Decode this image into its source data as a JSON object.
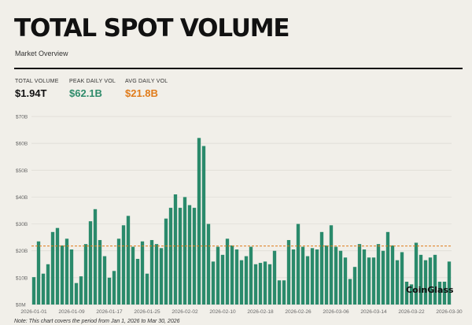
{
  "header": {
    "title": "TOTAL SPOT VOLUME",
    "subtitle": "Market Overview"
  },
  "stats": [
    {
      "label": "TOTAL VOLUME",
      "value": "$1.94T",
      "color": "#111111"
    },
    {
      "label": "PEAK DAILY VOL",
      "value": "$62.1B",
      "color": "#2e8b6a"
    },
    {
      "label": "AVG DAILY VOL",
      "value": "$21.8B",
      "color": "#e07b1a"
    }
  ],
  "brand": "CoinGlass",
  "note": "Note: This chart covers the period from Jan 1, 2026 to Mar 30, 2026",
  "colors": {
    "bar": "#2a8a6b",
    "avg_line": "#e07b1a",
    "grid": "#dcdad3"
  },
  "chart_data": {
    "type": "bar",
    "title": "TOTAL SPOT VOLUME",
    "xlabel": "",
    "ylabel": "",
    "ylim": [
      0,
      70
    ],
    "yticks": [
      0,
      10,
      20,
      30,
      40,
      50,
      60,
      70
    ],
    "ytick_labels": [
      "$0M",
      "$10B",
      "$20B",
      "$30B",
      "$40B",
      "$50B",
      "$60B",
      "$70B"
    ],
    "xtick_labels": [
      "2026-01-01",
      "2026-01-09",
      "2026-01-17",
      "2026-01-25",
      "2026-02-02",
      "2026-02-10",
      "2026-02-18",
      "2026-02-26",
      "2026-03-06",
      "2026-03-14",
      "2026-03-22",
      "2026-03-30"
    ],
    "grid": true,
    "avg_line": 21.8,
    "categories": [
      "2026-01-01",
      "2026-01-02",
      "2026-01-03",
      "2026-01-04",
      "2026-01-05",
      "2026-01-06",
      "2026-01-07",
      "2026-01-08",
      "2026-01-09",
      "2026-01-10",
      "2026-01-11",
      "2026-01-12",
      "2026-01-13",
      "2026-01-14",
      "2026-01-15",
      "2026-01-16",
      "2026-01-17",
      "2026-01-18",
      "2026-01-19",
      "2026-01-20",
      "2026-01-21",
      "2026-01-22",
      "2026-01-23",
      "2026-01-24",
      "2026-01-25",
      "2026-01-26",
      "2026-01-27",
      "2026-01-28",
      "2026-01-29",
      "2026-01-30",
      "2026-01-31",
      "2026-02-01",
      "2026-02-02",
      "2026-02-03",
      "2026-02-04",
      "2026-02-05",
      "2026-02-06",
      "2026-02-07",
      "2026-02-08",
      "2026-02-09",
      "2026-02-10",
      "2026-02-11",
      "2026-02-12",
      "2026-02-13",
      "2026-02-14",
      "2026-02-15",
      "2026-02-16",
      "2026-02-17",
      "2026-02-18",
      "2026-02-19",
      "2026-02-20",
      "2026-02-21",
      "2026-02-22",
      "2026-02-23",
      "2026-02-24",
      "2026-02-25",
      "2026-02-26",
      "2026-02-27",
      "2026-02-28",
      "2026-03-01",
      "2026-03-02",
      "2026-03-03",
      "2026-03-04",
      "2026-03-05",
      "2026-03-06",
      "2026-03-07",
      "2026-03-08",
      "2026-03-09",
      "2026-03-10",
      "2026-03-11",
      "2026-03-12",
      "2026-03-13",
      "2026-03-14",
      "2026-03-15",
      "2026-03-16",
      "2026-03-17",
      "2026-03-18",
      "2026-03-19",
      "2026-03-20",
      "2026-03-21",
      "2026-03-22",
      "2026-03-23",
      "2026-03-24",
      "2026-03-25",
      "2026-03-26",
      "2026-03-27",
      "2026-03-28",
      "2026-03-29",
      "2026-03-30"
    ],
    "values": [
      10.2,
      23.5,
      11.5,
      15.0,
      27.0,
      28.5,
      22.0,
      24.5,
      20.5,
      8.0,
      10.5,
      22.5,
      31.0,
      35.5,
      24.0,
      18.0,
      10.0,
      12.5,
      24.5,
      29.5,
      33.0,
      21.5,
      17.0,
      23.5,
      11.5,
      24.0,
      22.5,
      21.0,
      32.0,
      36.0,
      41.0,
      36.0,
      40.0,
      37.0,
      36.0,
      62.0,
      59.0,
      30.0,
      16.0,
      21.5,
      18.5,
      24.5,
      22.0,
      20.5,
      16.5,
      18.0,
      21.5,
      15.0,
      15.5,
      16.0,
      15.0,
      20.0,
      9.0,
      9.0,
      24.0,
      20.5,
      30.0,
      21.5,
      18.0,
      21.0,
      20.5,
      27.0,
      22.0,
      29.5,
      21.5,
      20.0,
      17.5,
      9.5,
      14.0,
      22.5,
      20.5,
      17.5,
      17.5,
      22.5,
      20.0,
      27.0,
      22.0,
      16.5,
      19.5,
      8.5,
      7.5,
      23.0,
      18.5,
      16.5,
      17.5,
      18.5,
      8.5,
      8.5,
      16.0
    ]
  }
}
